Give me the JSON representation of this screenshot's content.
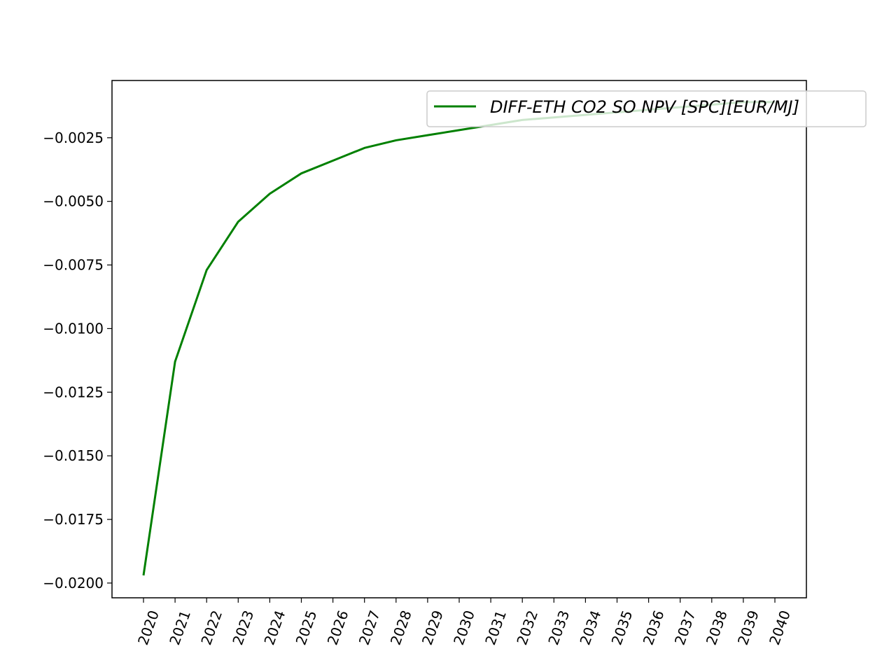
{
  "chart_data": {
    "type": "line",
    "title": "",
    "xlabel": "",
    "ylabel": "",
    "x": [
      "2020",
      "2021",
      "2022",
      "2023",
      "2024",
      "2025",
      "2026",
      "2027",
      "2028",
      "2029",
      "2030",
      "2031",
      "2032",
      "2033",
      "2034",
      "2035",
      "2036",
      "2037",
      "2038",
      "2039",
      "2040"
    ],
    "series": [
      {
        "name": "DIFF-ETH CO2 SO NPV [SPC][EUR/MJ]",
        "color": "#008000",
        "values": [
          -0.0197,
          -0.0113,
          -0.0077,
          -0.0058,
          -0.0047,
          -0.0039,
          -0.0034,
          -0.0029,
          -0.0026,
          -0.0024,
          -0.0022,
          -0.002,
          -0.0018,
          -0.0017,
          -0.0016,
          -0.0015,
          -0.0014,
          -0.0013,
          -0.0012,
          -0.0011,
          -0.0011
        ]
      }
    ],
    "yticks": [
      -0.02,
      -0.0175,
      -0.015,
      -0.0125,
      -0.01,
      -0.0075,
      -0.005,
      -0.0025
    ],
    "ytick_labels": [
      "−0.0200",
      "−0.0175",
      "−0.0150",
      "−0.0125",
      "−0.0100",
      "−0.0075",
      "−0.0050",
      "−0.0025"
    ],
    "ylim": [
      -0.02058,
      -0.00025
    ],
    "xtick_rotation": -70,
    "grid": false,
    "legend_position": "top-right"
  }
}
